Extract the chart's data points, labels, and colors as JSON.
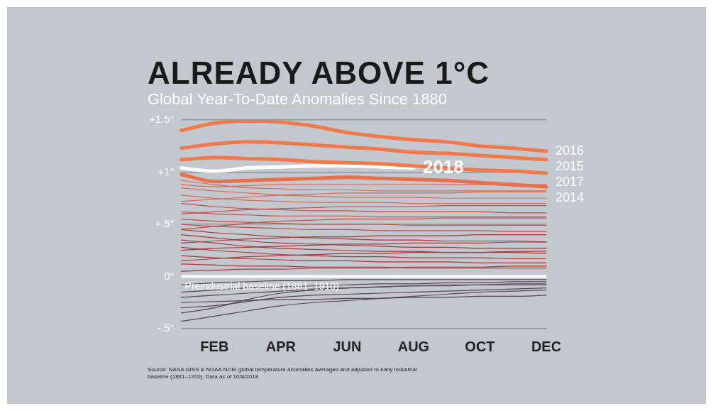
{
  "chart_data": {
    "type": "line",
    "title": "ALREADY ABOVE 1°C",
    "subtitle": "Global Year-To-Date Anomalies Since 1880",
    "categories": [
      null,
      "FEB",
      null,
      "APR",
      null,
      "JUN",
      null,
      "AUG",
      null,
      "OCT",
      null,
      "DEC"
    ],
    "ylim": [
      -0.5,
      1.5
    ],
    "yticks": [
      {
        "value": -0.5,
        "label": "-.5°"
      },
      {
        "value": 0,
        "label": "0°"
      },
      {
        "value": 0.5,
        "label": "+.5°"
      },
      {
        "value": 1,
        "label": "+1°"
      },
      {
        "value": 1.5,
        "label": "+1.5°"
      }
    ],
    "grid": "y",
    "legend": false,
    "ref_lines": [
      {
        "axis": "y",
        "value": 0,
        "label": "Preindustrial baseline (1881–1910)",
        "color": "#ffffff"
      }
    ],
    "annotations": [
      "Source: NASA GISS & NOAA NCEI global temperature anomalies averaged and adjusted to early industrial baseline (1881–1910). Data as of 10/8/2018"
    ],
    "series": [
      {
        "color": "#5a4450",
        "values": [
          -0.43,
          -0.38,
          -0.33,
          -0.28,
          -0.25,
          -0.23,
          -0.21,
          -0.19,
          -0.17,
          -0.15,
          -0.14,
          -0.13
        ]
      },
      {
        "color": "#5a4450",
        "values": [
          -0.3,
          -0.28,
          -0.24,
          -0.2,
          -0.18,
          -0.17,
          -0.16,
          -0.15,
          -0.14,
          -0.13,
          -0.12,
          -0.11
        ]
      },
      {
        "color": "#5a4450",
        "values": [
          -0.25,
          -0.24,
          -0.23,
          -0.22,
          -0.22,
          -0.21,
          -0.21,
          -0.2,
          -0.2,
          -0.19,
          -0.19,
          -0.18
        ]
      },
      {
        "color": "#5a4450",
        "values": [
          -0.2,
          -0.18,
          -0.16,
          -0.14,
          -0.12,
          -0.11,
          -0.1,
          -0.09,
          -0.08,
          -0.08,
          -0.07,
          -0.07
        ]
      },
      {
        "color": "#5a4450",
        "values": [
          -0.35,
          -0.3,
          -0.22,
          -0.16,
          -0.13,
          -0.11,
          -0.1,
          -0.09,
          -0.09,
          -0.08,
          -0.08,
          -0.08
        ]
      },
      {
        "color": "#5a4450",
        "values": [
          -0.15,
          -0.13,
          -0.11,
          -0.1,
          -0.09,
          -0.08,
          -0.07,
          -0.07,
          -0.06,
          -0.06,
          -0.05,
          -0.05
        ]
      },
      {
        "color": "#5a4450",
        "values": [
          -0.08,
          -0.06,
          -0.05,
          -0.04,
          -0.04,
          -0.03,
          -0.03,
          -0.03,
          -0.03,
          -0.03,
          -0.03,
          -0.03
        ]
      },
      {
        "color": "#a8383c",
        "values": [
          0.05,
          0.06,
          0.07,
          0.07,
          0.08,
          0.08,
          0.08,
          0.09,
          0.09,
          0.09,
          0.1,
          0.1
        ]
      },
      {
        "color": "#a8383c",
        "values": [
          0.12,
          0.11,
          0.1,
          0.1,
          0.09,
          0.09,
          0.09,
          0.08,
          0.08,
          0.08,
          0.08,
          0.08
        ]
      },
      {
        "color": "#a8383c",
        "values": [
          0.2,
          0.18,
          0.17,
          0.16,
          0.15,
          0.15,
          0.14,
          0.14,
          0.14,
          0.13,
          0.13,
          0.13
        ]
      },
      {
        "color": "#a8383c",
        "values": [
          0.28,
          0.25,
          0.23,
          0.21,
          0.2,
          0.19,
          0.19,
          0.18,
          0.18,
          0.18,
          0.17,
          0.17
        ]
      },
      {
        "color": "#a8383c",
        "values": [
          0.15,
          0.17,
          0.19,
          0.2,
          0.21,
          0.22,
          0.22,
          0.23,
          0.23,
          0.23,
          0.24,
          0.24
        ]
      },
      {
        "color": "#a8383c",
        "values": [
          0.35,
          0.32,
          0.29,
          0.27,
          0.26,
          0.25,
          0.24,
          0.24,
          0.23,
          0.23,
          0.23,
          0.22
        ]
      },
      {
        "color": "#a8383c",
        "values": [
          0.4,
          0.37,
          0.34,
          0.32,
          0.31,
          0.3,
          0.29,
          0.28,
          0.28,
          0.27,
          0.27,
          0.27
        ]
      },
      {
        "color": "#a8383c",
        "values": [
          0.25,
          0.27,
          0.28,
          0.29,
          0.3,
          0.31,
          0.31,
          0.32,
          0.32,
          0.32,
          0.33,
          0.33
        ]
      },
      {
        "color": "#a8383c",
        "values": [
          0.45,
          0.42,
          0.4,
          0.38,
          0.37,
          0.36,
          0.35,
          0.35,
          0.34,
          0.34,
          0.34,
          0.33
        ]
      },
      {
        "color": "#a8383c",
        "values": [
          0.32,
          0.34,
          0.36,
          0.37,
          0.38,
          0.38,
          0.39,
          0.39,
          0.39,
          0.4,
          0.4,
          0.4
        ]
      },
      {
        "color": "#c0504a",
        "values": [
          0.5,
          0.48,
          0.47,
          0.46,
          0.45,
          0.45,
          0.44,
          0.44,
          0.44,
          0.44,
          0.43,
          0.43
        ]
      },
      {
        "color": "#c0504a",
        "values": [
          0.55,
          0.53,
          0.52,
          0.51,
          0.5,
          0.5,
          0.5,
          0.49,
          0.49,
          0.49,
          0.49,
          0.49
        ]
      },
      {
        "color": "#c0504a",
        "values": [
          0.45,
          0.48,
          0.51,
          0.53,
          0.54,
          0.55,
          0.55,
          0.55,
          0.56,
          0.56,
          0.56,
          0.56
        ]
      },
      {
        "color": "#c0504a",
        "values": [
          0.62,
          0.6,
          0.59,
          0.58,
          0.58,
          0.58,
          0.57,
          0.57,
          0.57,
          0.57,
          0.57,
          0.57
        ]
      },
      {
        "color": "#c0504a",
        "values": [
          0.7,
          0.67,
          0.65,
          0.64,
          0.63,
          0.63,
          0.62,
          0.62,
          0.62,
          0.62,
          0.61,
          0.61
        ]
      },
      {
        "color": "#c0504a",
        "values": [
          0.6,
          0.62,
          0.64,
          0.65,
          0.66,
          0.67,
          0.67,
          0.67,
          0.68,
          0.68,
          0.68,
          0.68
        ]
      },
      {
        "color": "#d86a58",
        "values": [
          0.78,
          0.75,
          0.73,
          0.72,
          0.71,
          0.71,
          0.71,
          0.7,
          0.7,
          0.7,
          0.7,
          0.7
        ]
      },
      {
        "color": "#d86a58",
        "values": [
          0.85,
          0.82,
          0.8,
          0.78,
          0.77,
          0.76,
          0.76,
          0.76,
          0.75,
          0.75,
          0.75,
          0.75
        ]
      },
      {
        "color": "#d86a58",
        "values": [
          0.72,
          0.74,
          0.76,
          0.78,
          0.79,
          0.8,
          0.8,
          0.8,
          0.8,
          0.81,
          0.81,
          0.81
        ]
      },
      {
        "color": "#d86a58",
        "values": [
          0.92,
          0.88,
          0.85,
          0.84,
          0.83,
          0.83,
          0.82,
          0.82,
          0.82,
          0.82,
          0.82,
          0.82
        ]
      },
      {
        "color": "#d86a58",
        "values": [
          0.88,
          0.86,
          0.87,
          0.88,
          0.88,
          0.88,
          0.88,
          0.88,
          0.88,
          0.88,
          0.88,
          0.88
        ]
      },
      {
        "name": "2014",
        "color": "#e8704c",
        "values": [
          0.98,
          0.91,
          0.92,
          0.93,
          0.94,
          0.95,
          0.94,
          0.93,
          0.92,
          0.9,
          0.88,
          0.86
        ]
      },
      {
        "name": "2017",
        "color": "#f07a4c",
        "values": [
          1.12,
          1.14,
          1.13,
          1.12,
          1.1,
          1.09,
          1.08,
          1.06,
          1.04,
          1.02,
          1.01,
          0.99
        ]
      },
      {
        "name": "2015",
        "color": "#f07a4c",
        "values": [
          1.23,
          1.27,
          1.29,
          1.28,
          1.26,
          1.24,
          1.22,
          1.19,
          1.18,
          1.16,
          1.14,
          1.12
        ]
      },
      {
        "name": "2016",
        "color": "#f07a4c",
        "values": [
          1.4,
          1.47,
          1.49,
          1.48,
          1.44,
          1.38,
          1.34,
          1.31,
          1.29,
          1.25,
          1.23,
          1.2
        ]
      },
      {
        "name": "2018",
        "color": "#ffffff",
        "values": [
          1.04,
          1.01,
          1.04,
          1.05,
          1.06,
          1.06,
          1.05,
          1.04,
          null,
          null,
          null,
          null
        ]
      }
    ]
  }
}
